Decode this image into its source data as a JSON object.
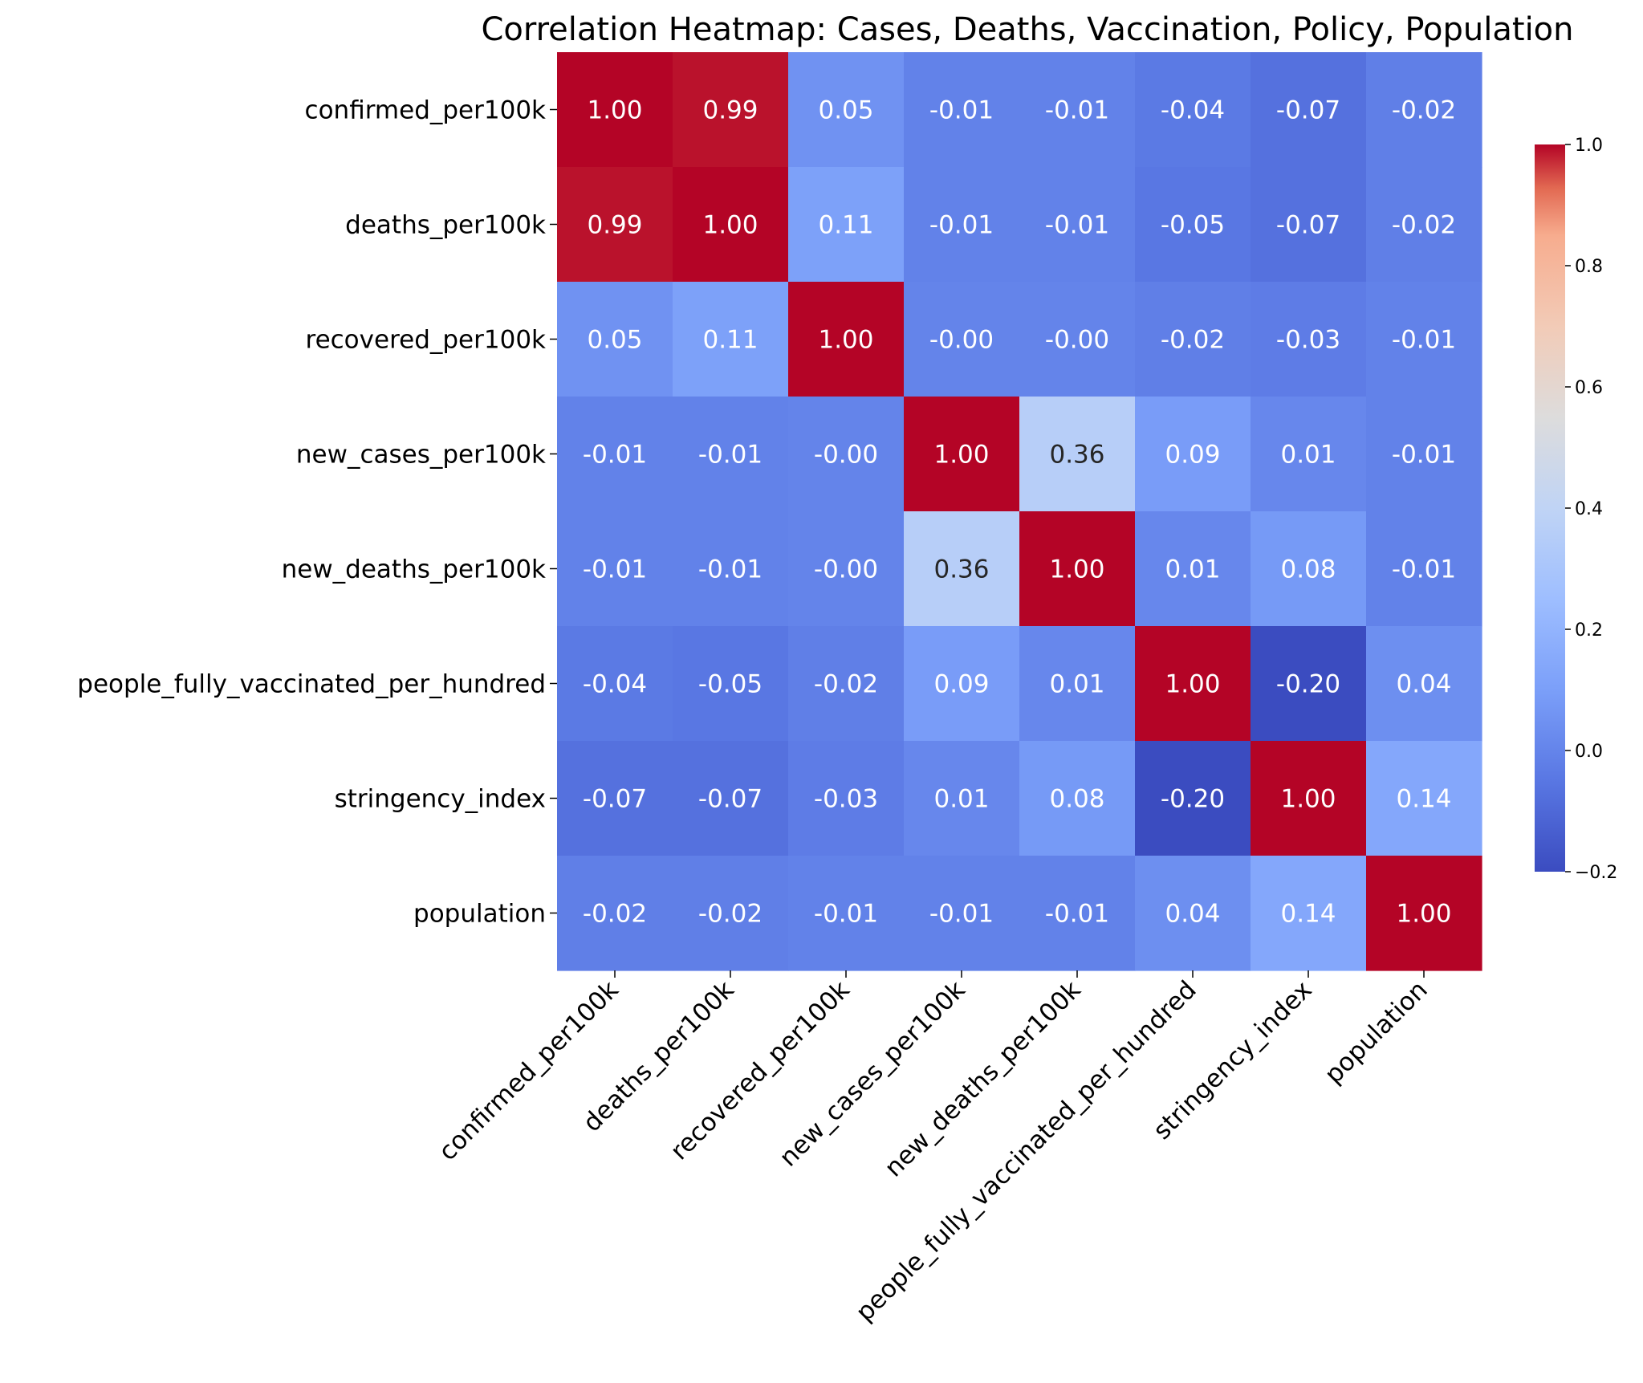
{
  "chart_data": {
    "type": "heatmap",
    "title": "Correlation Heatmap: Cases, Deaths, Vaccination, Policy, Population",
    "colormap": "coolwarm",
    "variables": [
      "confirmed_per100k",
      "deaths_per100k",
      "recovered_per100k",
      "new_cases_per100k",
      "new_deaths_per100k",
      "people_fully_vaccinated_per_hundred",
      "stringency_index",
      "population"
    ],
    "matrix": [
      [
        1.0,
        0.99,
        0.05,
        -0.01,
        -0.01,
        -0.04,
        -0.07,
        -0.02
      ],
      [
        0.99,
        1.0,
        0.11,
        -0.01,
        -0.01,
        -0.05,
        -0.07,
        -0.02
      ],
      [
        0.05,
        0.11,
        1.0,
        -0.0,
        -0.0,
        -0.02,
        -0.03,
        -0.01
      ],
      [
        -0.01,
        -0.01,
        -0.0,
        1.0,
        0.36,
        0.09,
        0.01,
        -0.01
      ],
      [
        -0.01,
        -0.01,
        -0.0,
        0.36,
        1.0,
        0.01,
        0.08,
        -0.01
      ],
      [
        -0.04,
        -0.05,
        -0.02,
        0.09,
        0.01,
        1.0,
        -0.2,
        0.04
      ],
      [
        -0.07,
        -0.07,
        -0.03,
        0.01,
        0.08,
        -0.2,
        1.0,
        0.14
      ],
      [
        -0.02,
        -0.02,
        -0.01,
        -0.01,
        -0.01,
        0.04,
        0.14,
        1.0
      ]
    ],
    "labels": [
      [
        "1.00",
        "0.99",
        "0.05",
        "-0.01",
        "-0.01",
        "-0.04",
        "-0.07",
        "-0.02"
      ],
      [
        "0.99",
        "1.00",
        "0.11",
        "-0.01",
        "-0.01",
        "-0.05",
        "-0.07",
        "-0.02"
      ],
      [
        "0.05",
        "0.11",
        "1.00",
        "-0.00",
        "-0.00",
        "-0.02",
        "-0.03",
        "-0.01"
      ],
      [
        "-0.01",
        "-0.01",
        "-0.00",
        "1.00",
        "0.36",
        "0.09",
        "0.01",
        "-0.01"
      ],
      [
        "-0.01",
        "-0.01",
        "-0.00",
        "0.36",
        "1.00",
        "0.01",
        "0.08",
        "-0.01"
      ],
      [
        "-0.04",
        "-0.05",
        "-0.02",
        "0.09",
        "0.01",
        "1.00",
        "-0.20",
        "0.04"
      ],
      [
        "-0.07",
        "-0.07",
        "-0.03",
        "0.01",
        "0.08",
        "-0.20",
        "1.00",
        "0.14"
      ],
      [
        "-0.02",
        "-0.02",
        "-0.01",
        "-0.01",
        "-0.01",
        "0.04",
        "0.14",
        "1.00"
      ]
    ],
    "colorbar": {
      "range": [
        -0.2,
        1.0
      ],
      "ticks": [
        "1.0",
        "0.8",
        "0.6",
        "0.4",
        "0.2",
        "0.0",
        "−0.2"
      ],
      "tick_values": [
        1.0,
        0.8,
        0.6,
        0.4,
        0.2,
        0.0,
        -0.2
      ],
      "placement": "right"
    },
    "grid": false
  }
}
